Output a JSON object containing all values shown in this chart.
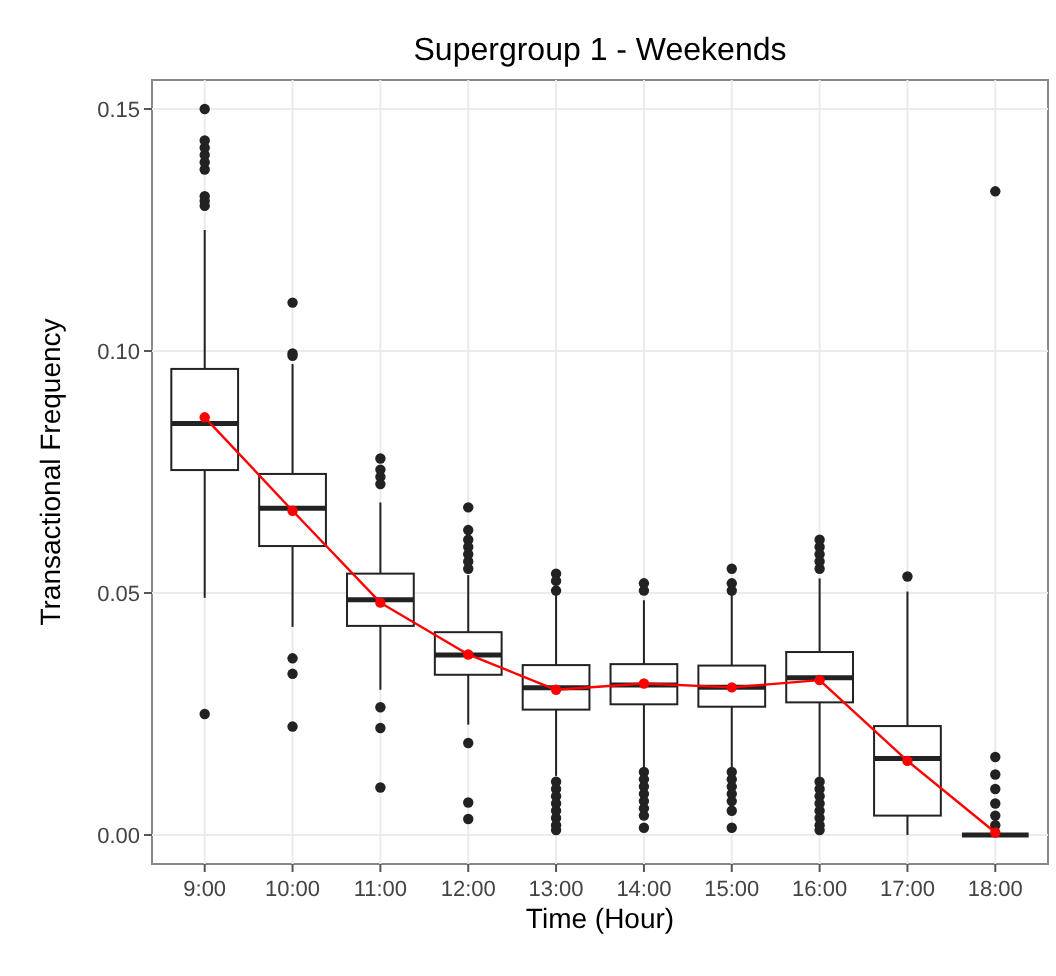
{
  "chart_data": {
    "type": "box",
    "title": "Supergroup 1 - Weekends",
    "xlabel": "Time (Hour)",
    "ylabel": "Transactional Frequency",
    "categories": [
      "9:00",
      "10:00",
      "11:00",
      "12:00",
      "13:00",
      "14:00",
      "15:00",
      "16:00",
      "17:00",
      "18:00"
    ],
    "ylim": [
      -0.006,
      0.156
    ],
    "yticks": [
      {
        "value": 0,
        "label": "0.00"
      },
      {
        "value": 0.05,
        "label": "0.05"
      },
      {
        "value": 0.1,
        "label": "0.10"
      },
      {
        "value": 0.15,
        "label": "0.15"
      }
    ],
    "grid": true,
    "color": "#222222",
    "series": [
      {
        "type": "line",
        "color": "#ff0000",
        "marker": "circle",
        "values": [
          0.0863,
          0.067,
          0.048,
          0.0373,
          0.03,
          0.0313,
          0.0305,
          0.032,
          0.0153,
          0.0005
        ]
      }
    ],
    "boxes": [
      {
        "low": 0.049,
        "q1": 0.0754,
        "median": 0.085,
        "q3": 0.0963,
        "high": 0.125,
        "outliers": [
          0.15,
          0.1435,
          0.142,
          0.1405,
          0.139,
          0.1375,
          0.132,
          0.131,
          0.13,
          0.025
        ]
      },
      {
        "low": 0.043,
        "q1": 0.0597,
        "median": 0.0675,
        "q3": 0.0746,
        "high": 0.0973,
        "outliers": [
          0.11,
          0.0995,
          0.099,
          0.0365,
          0.0333,
          0.0224
        ]
      },
      {
        "low": 0.03,
        "q1": 0.0432,
        "median": 0.0486,
        "q3": 0.054,
        "high": 0.0687,
        "outliers": [
          0.0778,
          0.0755,
          0.074,
          0.0725,
          0.0264,
          0.0221,
          0.0098
        ]
      },
      {
        "low": 0.0228,
        "q1": 0.0331,
        "median": 0.0372,
        "q3": 0.0419,
        "high": 0.0537,
        "outliers": [
          0.0677,
          0.063,
          0.061,
          0.0595,
          0.058,
          0.0565,
          0.055,
          0.019,
          0.0067,
          0.0033
        ]
      },
      {
        "low": 0.0122,
        "q1": 0.0259,
        "median": 0.0304,
        "q3": 0.0351,
        "high": 0.0496,
        "outliers": [
          0.054,
          0.0525,
          0.0505,
          0.011,
          0.0095,
          0.008,
          0.0065,
          0.005,
          0.0035,
          0.002,
          0.001
        ]
      },
      {
        "low": 0.014,
        "q1": 0.027,
        "median": 0.031,
        "q3": 0.0353,
        "high": 0.0485,
        "outliers": [
          0.052,
          0.0505,
          0.013,
          0.0115,
          0.01,
          0.0085,
          0.007,
          0.0055,
          0.004,
          0.0015
        ]
      },
      {
        "low": 0.014,
        "q1": 0.0265,
        "median": 0.0305,
        "q3": 0.035,
        "high": 0.0496,
        "outliers": [
          0.055,
          0.052,
          0.0505,
          0.013,
          0.0115,
          0.01,
          0.0085,
          0.007,
          0.005,
          0.0015
        ]
      },
      {
        "low": 0.012,
        "q1": 0.0274,
        "median": 0.0325,
        "q3": 0.0378,
        "high": 0.053,
        "outliers": [
          0.061,
          0.0595,
          0.058,
          0.0565,
          0.055,
          0.011,
          0.0095,
          0.008,
          0.0065,
          0.005,
          0.0035,
          0.002,
          0.001
        ]
      },
      {
        "low": 0,
        "q1": 0.004,
        "median": 0.0158,
        "q3": 0.0225,
        "high": 0.0503,
        "outliers": [
          0.0534
        ]
      },
      {
        "low": 0,
        "q1": 0,
        "median": 0,
        "q3": 0,
        "high": 0,
        "outliers": [
          0.133,
          0.0161,
          0.0125,
          0.0095,
          0.0065,
          0.004,
          0.002
        ]
      }
    ]
  }
}
